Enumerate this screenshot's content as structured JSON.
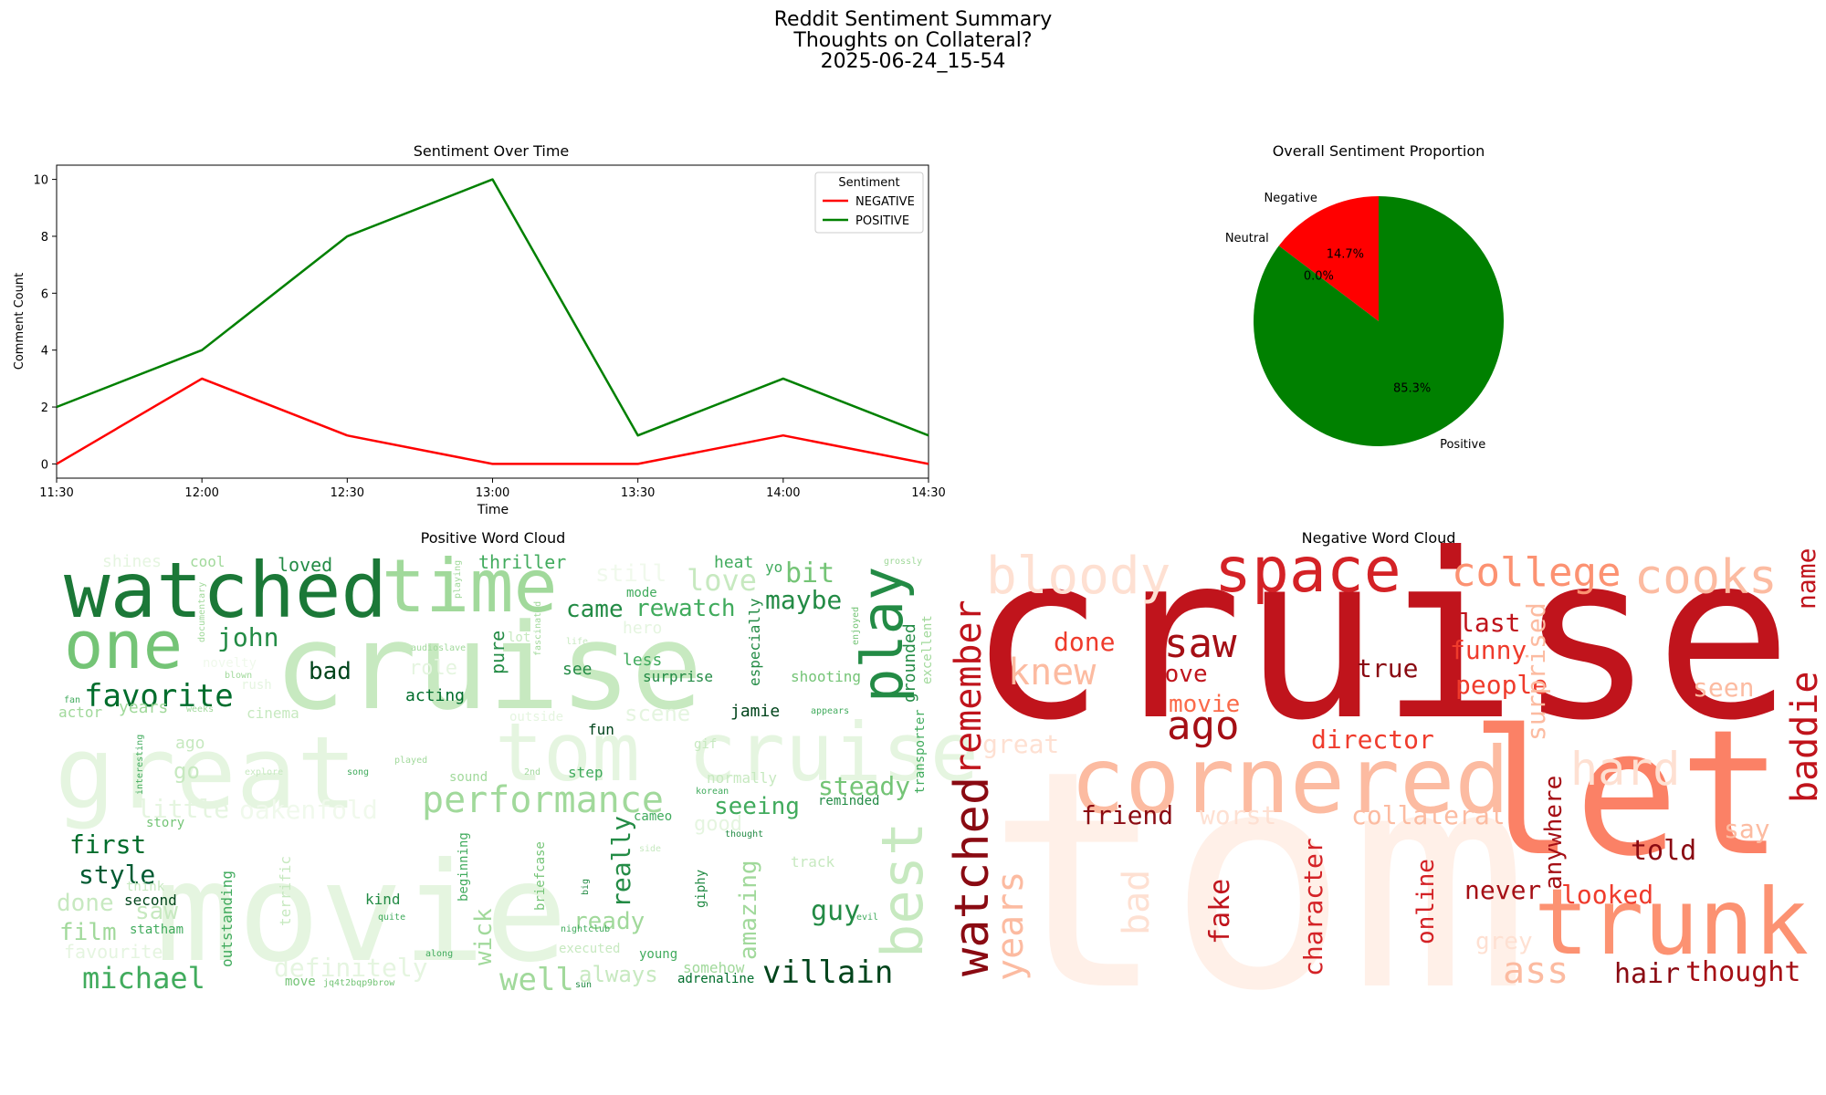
{
  "suptitle": {
    "line1": "Reddit Sentiment Summary",
    "line2": "Thoughts on Collateral?",
    "line3": "2025-06-24_15-54"
  },
  "chart_data": [
    {
      "type": "line",
      "title": "Sentiment Over Time",
      "xlabel": "Time",
      "ylabel": "Comment Count",
      "x": [
        "11:30",
        "12:00",
        "12:30",
        "13:00",
        "13:30",
        "14:00",
        "14:30"
      ],
      "ylim": [
        -0.5,
        10.5
      ],
      "yticks": [
        0,
        2,
        4,
        6,
        8,
        10
      ],
      "legend_title": "Sentiment",
      "legend_position": "upper right",
      "series": [
        {
          "name": "NEGATIVE",
          "color": "#ff0000",
          "values": [
            0,
            3,
            1,
            0,
            0,
            1,
            0
          ]
        },
        {
          "name": "POSITIVE",
          "color": "#008000",
          "values": [
            2,
            4,
            8,
            10,
            1,
            3,
            1
          ]
        }
      ]
    },
    {
      "type": "pie",
      "title": "Overall Sentiment Proportion",
      "slices": [
        {
          "label": "Negative",
          "value": 14.7,
          "pct_label": "14.7%",
          "color": "#ff0000"
        },
        {
          "label": "Neutral",
          "value": 0.0,
          "pct_label": "0.0%",
          "color": "#808080"
        },
        {
          "label": "Positive",
          "value": 85.3,
          "pct_label": "85.3%",
          "color": "#008000"
        }
      ]
    },
    {
      "type": "wordcloud",
      "title": "Positive Word Cloud",
      "words": [
        {
          "text": "movie",
          "size": 150,
          "color": "#e5f5e0"
        },
        {
          "text": "great",
          "size": 110,
          "color": "#e5f5e0"
        },
        {
          "text": "tom cruise",
          "size": 88,
          "color": "#e5f5e0"
        },
        {
          "text": "cruise",
          "size": 130,
          "color": "#c7e9c0"
        },
        {
          "text": "watched",
          "size": 84,
          "color": "#1b7837"
        },
        {
          "text": "time",
          "size": 80,
          "color": "#a1d99b"
        },
        {
          "text": "one",
          "size": 72,
          "color": "#74c476"
        },
        {
          "text": "play",
          "size": 62,
          "color": "#238b45"
        },
        {
          "text": "best",
          "size": 62,
          "color": "#c7e9c0"
        },
        {
          "text": "performance",
          "size": 40,
          "color": "#a1d99b"
        },
        {
          "text": "villain",
          "size": 34,
          "color": "#00441b"
        },
        {
          "text": "favorite",
          "size": 34,
          "color": "#006d2c"
        },
        {
          "text": "michael",
          "size": 32,
          "color": "#41ab5d"
        },
        {
          "text": "well",
          "size": 34,
          "color": "#a1d99b"
        },
        {
          "text": "definitely",
          "size": 28,
          "color": "#e5f5e0"
        },
        {
          "text": "oakenfold",
          "size": 28,
          "color": "#f0f9ec"
        },
        {
          "text": "little",
          "size": 28,
          "color": "#e5f5e0"
        },
        {
          "text": "first",
          "size": 28,
          "color": "#006d2c"
        },
        {
          "text": "style",
          "size": 28,
          "color": "#005a32"
        },
        {
          "text": "film",
          "size": 26,
          "color": "#a1d99b"
        },
        {
          "text": "done",
          "size": 26,
          "color": "#c7e9c0"
        },
        {
          "text": "john",
          "size": 28,
          "color": "#238b45"
        },
        {
          "text": "bad",
          "size": 26,
          "color": "#00441b"
        },
        {
          "text": "love",
          "size": 32,
          "color": "#c7e9c0"
        },
        {
          "text": "bit",
          "size": 30,
          "color": "#74c476"
        },
        {
          "text": "maybe",
          "size": 28,
          "color": "#238b45"
        },
        {
          "text": "came",
          "size": 26,
          "color": "#238b45"
        },
        {
          "text": "rewatch",
          "size": 26,
          "color": "#41ab5d"
        },
        {
          "text": "steady",
          "size": 28,
          "color": "#74c476"
        },
        {
          "text": "seeing",
          "size": 26,
          "color": "#41ab5d"
        },
        {
          "text": "guy",
          "size": 30,
          "color": "#238b45"
        },
        {
          "text": "really",
          "size": 28,
          "color": "#238b45"
        },
        {
          "text": "ready",
          "size": 26,
          "color": "#a1d99b"
        },
        {
          "text": "amazing",
          "size": 26,
          "color": "#a1d99b"
        },
        {
          "text": "wick",
          "size": 26,
          "color": "#a1d99b"
        },
        {
          "text": "always",
          "size": 24,
          "color": "#c7e9c0"
        },
        {
          "text": "scene",
          "size": 24,
          "color": "#e5f5e0"
        },
        {
          "text": "still",
          "size": 26,
          "color": "#f0f9ec"
        },
        {
          "text": "thriller",
          "size": 20,
          "color": "#41ab5d"
        },
        {
          "text": "loved",
          "size": 20,
          "color": "#238b45"
        },
        {
          "text": "heat",
          "size": 18,
          "color": "#41ab5d"
        },
        {
          "text": "yo",
          "size": 16,
          "color": "#41ab5d"
        },
        {
          "text": "cool",
          "size": 16,
          "color": "#a1d99b"
        },
        {
          "text": "shines",
          "size": 18,
          "color": "#e5f5e0"
        },
        {
          "text": "role",
          "size": 22,
          "color": "#e5f5e0"
        },
        {
          "text": "acting",
          "size": 18,
          "color": "#006d2c"
        },
        {
          "text": "pure",
          "size": 20,
          "color": "#238b45"
        },
        {
          "text": "see",
          "size": 18,
          "color": "#238b45"
        },
        {
          "text": "less",
          "size": 18,
          "color": "#41ab5d"
        },
        {
          "text": "hero",
          "size": 18,
          "color": "#e5f5e0"
        },
        {
          "text": "surprise",
          "size": 16,
          "color": "#238b45"
        },
        {
          "text": "especially",
          "size": 16,
          "color": "#238b45"
        },
        {
          "text": "shooting",
          "size": 16,
          "color": "#74c476"
        },
        {
          "text": "grounded",
          "size": 18,
          "color": "#238b45"
        },
        {
          "text": "excellent",
          "size": 14,
          "color": "#a1d99b"
        },
        {
          "text": "transporter",
          "size": 14,
          "color": "#41ab5d"
        },
        {
          "text": "jamie",
          "size": 18,
          "color": "#00441b"
        },
        {
          "text": "fun",
          "size": 16,
          "color": "#00441b"
        },
        {
          "text": "step",
          "size": 16,
          "color": "#41ab5d"
        },
        {
          "text": "normally",
          "size": 16,
          "color": "#c7e9c0"
        },
        {
          "text": "reminded",
          "size": 14,
          "color": "#238b45"
        },
        {
          "text": "cameo",
          "size": 14,
          "color": "#41ab5d"
        },
        {
          "text": "good",
          "size": 22,
          "color": "#e5f5e0"
        },
        {
          "text": "track",
          "size": 16,
          "color": "#c7e9c0"
        },
        {
          "text": "second",
          "size": 16,
          "color": "#00441b"
        },
        {
          "text": "statham",
          "size": 14,
          "color": "#41ab5d"
        },
        {
          "text": "kind",
          "size": 16,
          "color": "#238b45"
        },
        {
          "text": "outstanding",
          "size": 16,
          "color": "#41ab5d"
        },
        {
          "text": "terrific",
          "size": 16,
          "color": "#c7e9c0"
        },
        {
          "text": "beginning",
          "size": 14,
          "color": "#41ab5d"
        },
        {
          "text": "briefcase",
          "size": 14,
          "color": "#74c476"
        },
        {
          "text": "years",
          "size": 18,
          "color": "#a1d99b"
        },
        {
          "text": "actor",
          "size": 16,
          "color": "#a1d99b"
        },
        {
          "text": "cinema",
          "size": 16,
          "color": "#c7e9c0"
        },
        {
          "text": "saw",
          "size": 26,
          "color": "#c7e9c0"
        },
        {
          "text": "ago",
          "size": 18,
          "color": "#c7e9c0"
        },
        {
          "text": "go",
          "size": 24,
          "color": "#c7e9c0"
        },
        {
          "text": "story",
          "size": 14,
          "color": "#74c476"
        },
        {
          "text": "favourite",
          "size": 20,
          "color": "#e5f5e0"
        },
        {
          "text": "young",
          "size": 14,
          "color": "#41ab5d"
        },
        {
          "text": "somehow",
          "size": 16,
          "color": "#a1d99b"
        },
        {
          "text": "adrenaline",
          "size": 14,
          "color": "#006d2c"
        },
        {
          "text": "giphy",
          "size": 14,
          "color": "#238b45"
        },
        {
          "text": "sound",
          "size": 14,
          "color": "#a1d99b"
        },
        {
          "text": "song",
          "size": 10,
          "color": "#41ab5d"
        },
        {
          "text": "2nd",
          "size": 10,
          "color": "#a1d99b"
        },
        {
          "text": "gif",
          "size": 14,
          "color": "#c7e9c0"
        },
        {
          "text": "korean",
          "size": 10,
          "color": "#41ab5d"
        },
        {
          "text": "thought",
          "size": 10,
          "color": "#238b45"
        },
        {
          "text": "novelty",
          "size": 14,
          "color": "#f0f9ec"
        },
        {
          "text": "rush",
          "size": 14,
          "color": "#e5f5e0"
        },
        {
          "text": "blown",
          "size": 10,
          "color": "#a1d99b"
        },
        {
          "text": "weeks",
          "size": 10,
          "color": "#a1d99b"
        },
        {
          "text": "documentary",
          "size": 10,
          "color": "#a1d99b"
        },
        {
          "text": "playing",
          "size": 10,
          "color": "#a1d99b"
        },
        {
          "text": "audioslave",
          "size": 10,
          "color": "#a1d99b"
        },
        {
          "text": "fascinated",
          "size": 10,
          "color": "#a1d99b"
        },
        {
          "text": "lot",
          "size": 14,
          "color": "#c7e9c0"
        },
        {
          "text": "life",
          "size": 10,
          "color": "#c7e9c0"
        },
        {
          "text": "mode",
          "size": 14,
          "color": "#41ab5d"
        },
        {
          "text": "enjoyed",
          "size": 10,
          "color": "#74c476"
        },
        {
          "text": "grossly",
          "size": 10,
          "color": "#a1d99b"
        },
        {
          "text": "appears",
          "size": 10,
          "color": "#41ab5d"
        },
        {
          "text": "explore",
          "size": 10,
          "color": "#c7e9c0"
        },
        {
          "text": "interesting",
          "size": 10,
          "color": "#41ab5d"
        },
        {
          "text": "played",
          "size": 10,
          "color": "#a1d99b"
        },
        {
          "text": "nightclub",
          "size": 10,
          "color": "#41ab5d"
        },
        {
          "text": "executed",
          "size": 14,
          "color": "#c7e9c0"
        },
        {
          "text": "along",
          "size": 10,
          "color": "#41ab5d"
        },
        {
          "text": "move",
          "size": 14,
          "color": "#74c476"
        },
        {
          "text": "jq4t2bqp9brow",
          "size": 10,
          "color": "#74c476"
        },
        {
          "text": "sun",
          "size": 10,
          "color": "#238b45"
        },
        {
          "text": "quite",
          "size": 10,
          "color": "#41ab5d"
        },
        {
          "text": "evil",
          "size": 10,
          "color": "#41ab5d"
        },
        {
          "text": "big",
          "size": 10,
          "color": "#238b45"
        },
        {
          "text": "side",
          "size": 10,
          "color": "#c7e9c0"
        },
        {
          "text": "think",
          "size": 14,
          "color": "#c7e9c0"
        },
        {
          "text": "outside",
          "size": 14,
          "color": "#e5f5e0"
        },
        {
          "text": "fan",
          "size": 10,
          "color": "#41ab5d"
        }
      ]
    },
    {
      "type": "wordcloud",
      "title": "Negative Word Cloud",
      "words": [
        {
          "text": "tom",
          "size": 330,
          "color": "#fff0e8"
        },
        {
          "text": "cruise",
          "size": 250,
          "color": "#c0141c"
        },
        {
          "text": "let",
          "size": 190,
          "color": "#fb8166"
        },
        {
          "text": "cornered",
          "size": 100,
          "color": "#fcbba1"
        },
        {
          "text": "trunk",
          "size": 100,
          "color": "#fc9272"
        },
        {
          "text": "space",
          "size": 68,
          "color": "#d42226"
        },
        {
          "text": "bloody",
          "size": 56,
          "color": "#fee0d2"
        },
        {
          "text": "college",
          "size": 44,
          "color": "#fc9272"
        },
        {
          "text": "cooks",
          "size": 52,
          "color": "#fcbba1"
        },
        {
          "text": "watched",
          "size": 52,
          "color": "#8a0a12"
        },
        {
          "text": "remember",
          "size": 40,
          "color": "#c0141c"
        },
        {
          "text": "years",
          "size": 40,
          "color": "#fcbba1"
        },
        {
          "text": "hard",
          "size": 50,
          "color": "#fee0d2"
        },
        {
          "text": "baddie",
          "size": 40,
          "color": "#c0141c"
        },
        {
          "text": "saw",
          "size": 44,
          "color": "#a50f15"
        },
        {
          "text": "ago",
          "size": 44,
          "color": "#a50f15"
        },
        {
          "text": "knew",
          "size": 40,
          "color": "#fcbba1"
        },
        {
          "text": "done",
          "size": 28,
          "color": "#ef3b2c"
        },
        {
          "text": "love",
          "size": 26,
          "color": "#c0141c"
        },
        {
          "text": "movie",
          "size": 26,
          "color": "#fb6a4a"
        },
        {
          "text": "true",
          "size": 28,
          "color": "#8a0a12"
        },
        {
          "text": "last",
          "size": 28,
          "color": "#c0141c"
        },
        {
          "text": "funny",
          "size": 28,
          "color": "#ef3b2c"
        },
        {
          "text": "people",
          "size": 28,
          "color": "#ef3b2c"
        },
        {
          "text": "surprised",
          "size": 28,
          "color": "#fcbba1"
        },
        {
          "text": "seen",
          "size": 28,
          "color": "#fcbba1"
        },
        {
          "text": "name",
          "size": 28,
          "color": "#c0141c"
        },
        {
          "text": "director",
          "size": 28,
          "color": "#ef3b2c"
        },
        {
          "text": "great",
          "size": 28,
          "color": "#fee0d2"
        },
        {
          "text": "friend",
          "size": 28,
          "color": "#8a0a12"
        },
        {
          "text": "worst",
          "size": 28,
          "color": "#fee0d2"
        },
        {
          "text": "collateral",
          "size": 28,
          "color": "#fcbba1"
        },
        {
          "text": "anywhere",
          "size": 26,
          "color": "#a50f15"
        },
        {
          "text": "say",
          "size": 28,
          "color": "#fcbba1"
        },
        {
          "text": "told",
          "size": 30,
          "color": "#8a0a12"
        },
        {
          "text": "bad",
          "size": 40,
          "color": "#fee0d2"
        },
        {
          "text": "fake",
          "size": 30,
          "color": "#c0141c"
        },
        {
          "text": "character",
          "size": 28,
          "color": "#d42226"
        },
        {
          "text": "online",
          "size": 26,
          "color": "#d42226"
        },
        {
          "text": "never",
          "size": 28,
          "color": "#a50f15"
        },
        {
          "text": "looked",
          "size": 28,
          "color": "#ef3b2c"
        },
        {
          "text": "grey",
          "size": 26,
          "color": "#fee0d2"
        },
        {
          "text": "ass",
          "size": 40,
          "color": "#fcbba1"
        },
        {
          "text": "hair",
          "size": 30,
          "color": "#8a0a12"
        },
        {
          "text": "thought",
          "size": 30,
          "color": "#a50f15"
        }
      ]
    }
  ]
}
